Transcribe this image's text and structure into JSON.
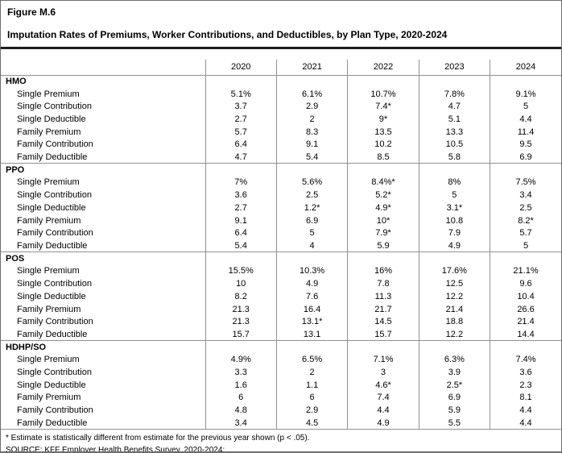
{
  "figure": {
    "label": "Figure M.6",
    "title": "Imputation Rates of Premiums, Worker Contributions, and Deductibles, by Plan Type, 2020-2024"
  },
  "chart_data": {
    "type": "table",
    "years": [
      "2020",
      "2021",
      "2022",
      "2023",
      "2024"
    ],
    "row_labels": [
      "Single Premium",
      "Single Contribution",
      "Single Deductible",
      "Family Premium",
      "Family Contribution",
      "Family Deductible"
    ],
    "sections": [
      {
        "name": "HMO",
        "rows": [
          [
            "5.1%",
            "6.1%",
            "10.7%",
            "7.8%",
            "9.1%"
          ],
          [
            "3.7",
            "2.9",
            "7.4*",
            "4.7",
            "5"
          ],
          [
            "2.7",
            "2",
            "9*",
            "5.1",
            "4.4"
          ],
          [
            "5.7",
            "8.3",
            "13.5",
            "13.3",
            "11.4"
          ],
          [
            "6.4",
            "9.1",
            "10.2",
            "10.5",
            "9.5"
          ],
          [
            "4.7",
            "5.4",
            "8.5",
            "5.8",
            "6.9"
          ]
        ]
      },
      {
        "name": "PPO",
        "rows": [
          [
            "7%",
            "5.6%",
            "8.4%*",
            "8%",
            "7.5%"
          ],
          [
            "3.6",
            "2.5",
            "5.2*",
            "5",
            "3.4"
          ],
          [
            "2.7",
            "1.2*",
            "4.9*",
            "3.1*",
            "2.5"
          ],
          [
            "9.1",
            "6.9",
            "10*",
            "10.8",
            "8.2*"
          ],
          [
            "6.4",
            "5",
            "7.9*",
            "7.9",
            "5.7"
          ],
          [
            "5.4",
            "4",
            "5.9",
            "4.9",
            "5"
          ]
        ]
      },
      {
        "name": "POS",
        "rows": [
          [
            "15.5%",
            "10.3%",
            "16%",
            "17.6%",
            "21.1%"
          ],
          [
            "10",
            "4.9",
            "7.8",
            "12.5",
            "9.6"
          ],
          [
            "8.2",
            "7.6",
            "11.3",
            "12.2",
            "10.4"
          ],
          [
            "21.3",
            "16.4",
            "21.7",
            "21.4",
            "26.6"
          ],
          [
            "21.3",
            "13.1*",
            "14.5",
            "18.8",
            "21.4"
          ],
          [
            "15.7",
            "13.1",
            "15.7",
            "12.2",
            "14.4"
          ]
        ]
      },
      {
        "name": "HDHP/SO",
        "rows": [
          [
            "4.9%",
            "6.5%",
            "7.1%",
            "6.3%",
            "7.4%"
          ],
          [
            "3.3",
            "2",
            "3",
            "3.9",
            "3.6"
          ],
          [
            "1.6",
            "1.1",
            "4.6*",
            "2.5*",
            "2.3"
          ],
          [
            "6",
            "6",
            "7.4",
            "6.9",
            "8.1"
          ],
          [
            "4.8",
            "2.9",
            "4.4",
            "5.9",
            "4.4"
          ],
          [
            "3.4",
            "4.5",
            "4.9",
            "5.5",
            "4.4"
          ]
        ]
      }
    ]
  },
  "footnotes": {
    "asterisk": "* Estimate is statistically different from estimate for the previous year shown (p < .05).",
    "source": "SOURCE: KFF Employer Health Benefits Survey, 2020-2024;"
  },
  "colors": {
    "text": "#000000",
    "grid_line": "#919191",
    "thick_rule": "#1c1c1c",
    "outer_border": "#6e6e6e",
    "background": "#ffffff"
  }
}
